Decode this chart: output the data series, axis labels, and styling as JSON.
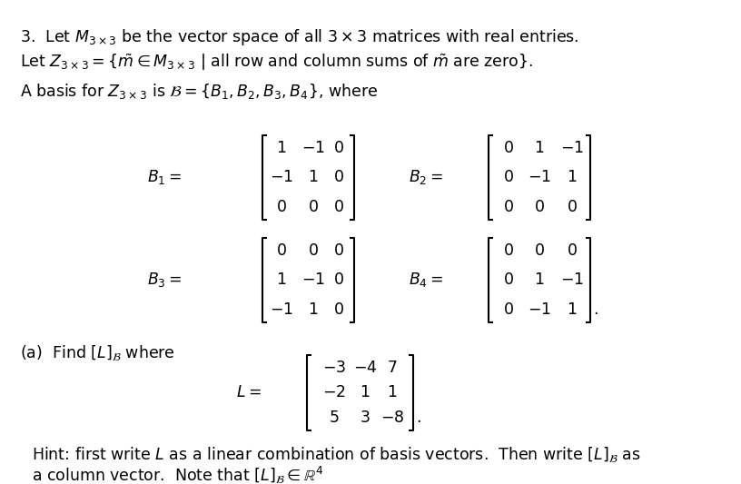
{
  "background_color": "#ffffff",
  "figsize": [
    8.16,
    5.33
  ],
  "dpi": 100,
  "line1": "3.  Let $M_{3\\times3}$ be the vector space of all $3 \\times 3$ matrices with real entries.",
  "line2": "Let $Z_{3\\times3} = \\{\\tilde{m} \\in M_{3\\times3}$ | all row and column sums of $\\tilde{m}$ are zero$\\}$.",
  "line3": "A basis for $Z_{3\\times3}$ is $\\mathcal{B} = \\{B_1, B_2, B_3, B_4\\}$, where",
  "fs_main": 12.5,
  "fs_matrix": 12.5,
  "B1_label": "$B_1 =$",
  "B2_label": "$B_2 =$",
  "B3_label": "$B_3 =$",
  "B4_label": "$B_4 =$",
  "B1": [
    [
      "1",
      "-1",
      "0"
    ],
    [
      "-1",
      "1",
      "0"
    ],
    [
      "0",
      "0",
      "0"
    ]
  ],
  "B2": [
    [
      "0",
      "1",
      "-1"
    ],
    [
      "0",
      "-1",
      "1"
    ],
    [
      "0",
      "0",
      "0"
    ]
  ],
  "B3": [
    [
      "0",
      "0",
      "0"
    ],
    [
      "1",
      "-1",
      "0"
    ],
    [
      "-1",
      "1",
      "0"
    ]
  ],
  "B4": [
    [
      "0",
      "0",
      "0"
    ],
    [
      "0",
      "1",
      "-1"
    ],
    [
      "0",
      "-1",
      "1"
    ]
  ],
  "L": [
    [
      "-3",
      "-4",
      "7"
    ],
    [
      "-2",
      "1",
      "1"
    ],
    [
      "5",
      "3",
      "-8"
    ]
  ],
  "parta": "(a)  Find $[L]_{\\mathcal{B}}$ where",
  "L_label": "$L =$",
  "hint1": "Hint: first write $L$ as a linear combination of basis vectors.  Then write $[L]_{\\mathcal{B}}$ as",
  "hint2": "a column vector.  Note that $[L]_{\\mathcal{B}} \\in \\mathbb{R}^4$"
}
